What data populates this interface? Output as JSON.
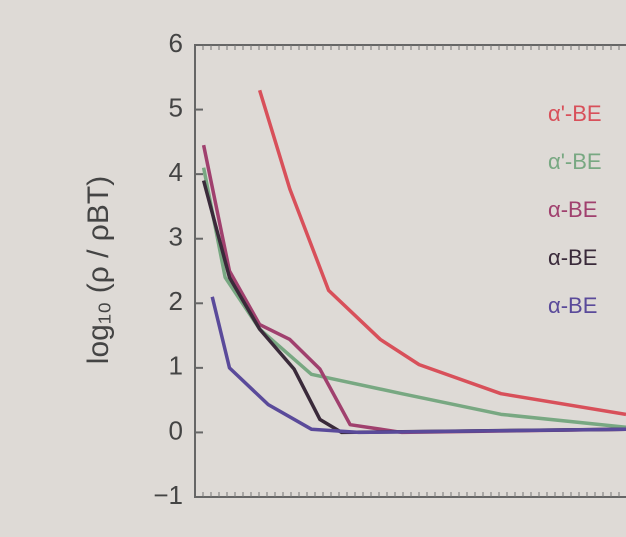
{
  "chart_data": {
    "type": "line",
    "y_label": "log₁₀ (ρ / ρBT)",
    "xlim": [
      0,
      100
    ],
    "ylim": [
      -1,
      6
    ],
    "yticks": [
      {
        "value": -1,
        "label": "−1"
      },
      0,
      1,
      2,
      3,
      4,
      5,
      6
    ],
    "series": [
      {
        "name": "α'-BE",
        "color": "#d8505a",
        "x": [
          15,
          22,
          31,
          43,
          52,
          71,
          100
        ],
        "values": [
          5.3,
          3.77,
          2.2,
          1.44,
          1.05,
          0.6,
          0.28
        ]
      },
      {
        "name": "α'-BE",
        "color": "#78a882",
        "x": [
          2,
          7,
          15,
          27,
          48,
          71,
          100
        ],
        "values": [
          4.1,
          2.4,
          1.6,
          0.9,
          0.6,
          0.28,
          0.08
        ]
      },
      {
        "name": "α-BE",
        "color": "#a0406e",
        "x": [
          2,
          8,
          15,
          22,
          29,
          36,
          48,
          100
        ],
        "values": [
          4.45,
          2.5,
          1.67,
          1.44,
          0.98,
          0.12,
          0,
          0.05
        ]
      },
      {
        "name": "α-BE",
        "color": "#3a2a3a",
        "x": [
          2,
          8,
          15,
          23,
          29,
          34,
          100
        ],
        "values": [
          3.9,
          2.4,
          1.6,
          0.98,
          0.2,
          0,
          0.05
        ]
      },
      {
        "name": "α-BE",
        "color": "#5a4a9a",
        "x": [
          4,
          8,
          17,
          27,
          38,
          100
        ],
        "values": [
          2.1,
          1,
          0.43,
          0.05,
          0,
          0.05
        ]
      }
    ]
  }
}
